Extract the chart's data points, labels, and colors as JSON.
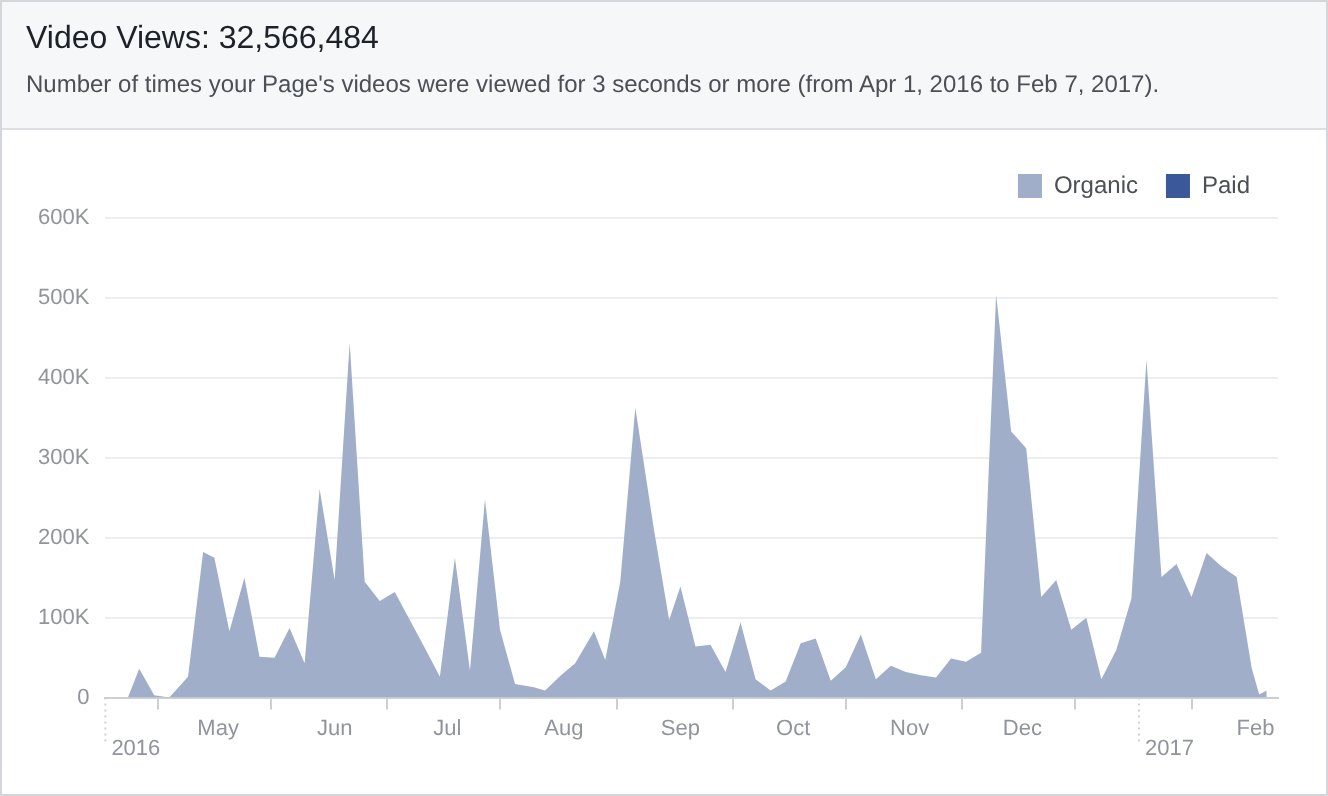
{
  "chart_data": {
    "type": "area",
    "title": "Video Views: 32,566,484",
    "subtitle": "Number of times your Page's videos were viewed for 3 seconds or more (from Apr 1, 2016 to Feb 7, 2017).",
    "legend": "top right",
    "grid": "y",
    "xlim": [
      "2016-04-01",
      "2017-02-07"
    ],
    "ref_lines": [
      {
        "axis": "x",
        "value": "2016-04-01",
        "label": "2016",
        "line_style": "dotted",
        "color": "#ccd0d5"
      },
      {
        "axis": "x",
        "value": "2017-01-01",
        "label": "2017",
        "line_style": "dotted",
        "color": "#ccd0d5"
      }
    ],
    "xticks": [
      {
        "value": "2016-04-15",
        "label": null
      },
      {
        "value": "2016-05-01",
        "label": "May"
      },
      {
        "value": "2016-05-15",
        "label": null
      },
      {
        "value": "2016-06-01",
        "label": "Jun"
      },
      {
        "value": "2016-06-15",
        "label": null
      },
      {
        "value": "2016-07-01",
        "label": "Jul"
      },
      {
        "value": "2016-07-15",
        "label": null
      },
      {
        "value": "2016-08-01",
        "label": "Aug"
      },
      {
        "value": "2016-08-15",
        "label": null
      },
      {
        "value": "2016-09-01",
        "label": "Sep"
      },
      {
        "value": "2016-09-15",
        "label": null
      },
      {
        "value": "2016-10-01",
        "label": "Oct"
      },
      {
        "value": "2016-10-15",
        "label": null
      },
      {
        "value": "2016-11-01",
        "label": "Nov"
      },
      {
        "value": "2016-11-15",
        "label": null
      },
      {
        "value": "2016-12-01",
        "label": "Dec"
      },
      {
        "value": "2016-12-15",
        "label": null
      },
      {
        "value": "2017-01-15",
        "label": null
      },
      {
        "value": "2017-02-01",
        "label": "Feb"
      }
    ],
    "ylim": [
      0,
      600000
    ],
    "yticks": [
      0,
      {
        "value": 100000,
        "label": "100K"
      },
      {
        "value": 200000,
        "label": "200K"
      },
      {
        "value": 300000,
        "label": "300K"
      },
      {
        "value": 400000,
        "label": "400K"
      },
      {
        "value": 500000,
        "label": "500K"
      },
      {
        "value": 600000,
        "label": "600K"
      }
    ],
    "series": [
      {
        "name": "Organic",
        "color": "#a0aec9",
        "x": [
          "2016-04-01",
          "2016-04-07",
          "2016-04-10",
          "2016-04-14",
          "2016-04-18",
          "2016-04-23",
          "2016-04-27",
          "2016-04-30",
          "2016-05-04",
          "2016-05-08",
          "2016-05-12",
          "2016-05-16",
          "2016-05-20",
          "2016-05-24",
          "2016-05-28",
          "2016-06-01",
          "2016-06-05",
          "2016-06-09",
          "2016-06-13",
          "2016-06-17",
          "2016-06-21",
          "2016-06-25",
          "2016-06-29",
          "2016-07-03",
          "2016-07-07",
          "2016-07-11",
          "2016-07-15",
          "2016-07-19",
          "2016-07-24",
          "2016-07-27",
          "2016-07-31",
          "2016-08-04",
          "2016-08-09",
          "2016-08-12",
          "2016-08-16",
          "2016-08-20",
          "2016-08-25",
          "2016-08-29",
          "2016-09-01",
          "2016-09-05",
          "2016-09-09",
          "2016-09-13",
          "2016-09-17",
          "2016-09-21",
          "2016-09-25",
          "2016-09-29",
          "2016-10-03",
          "2016-10-07",
          "2016-10-11",
          "2016-10-15",
          "2016-10-19",
          "2016-10-23",
          "2016-10-27",
          "2016-10-31",
          "2016-11-04",
          "2016-11-08",
          "2016-11-12",
          "2016-11-16",
          "2016-11-20",
          "2016-11-24",
          "2016-11-28",
          "2016-12-02",
          "2016-12-06",
          "2016-12-10",
          "2016-12-14",
          "2016-12-18",
          "2016-12-22",
          "2016-12-26",
          "2016-12-30",
          "2017-01-03",
          "2017-01-07",
          "2017-01-11",
          "2017-01-15",
          "2017-01-19",
          "2017-01-23",
          "2017-01-27",
          "2017-01-31",
          "2017-02-02",
          "2017-02-04"
        ],
        "values": [
          0,
          0,
          36000,
          3000,
          0,
          26000,
          182000,
          175000,
          83000,
          150000,
          51000,
          50000,
          87000,
          43000,
          261000,
          147000,
          444000,
          145000,
          121000,
          132000,
          97000,
          62000,
          26000,
          175000,
          34000,
          248000,
          85000,
          17000,
          13000,
          9000,
          27000,
          43000,
          83000,
          47000,
          145000,
          363000,
          209000,
          97000,
          139000,
          64000,
          66000,
          32000,
          94000,
          23000,
          9000,
          20000,
          68000,
          74000,
          21000,
          38000,
          79000,
          23000,
          40000,
          32000,
          28000,
          25000,
          49000,
          45000,
          56000,
          504000,
          333000,
          312000,
          126000,
          147000,
          85000,
          100000,
          23000,
          60000,
          124000,
          423000,
          151000,
          167000,
          126000,
          181000,
          164000,
          151000,
          37000,
          4000,
          9000
        ]
      },
      {
        "name": "Paid",
        "color": "#3b5998"
      }
    ]
  }
}
